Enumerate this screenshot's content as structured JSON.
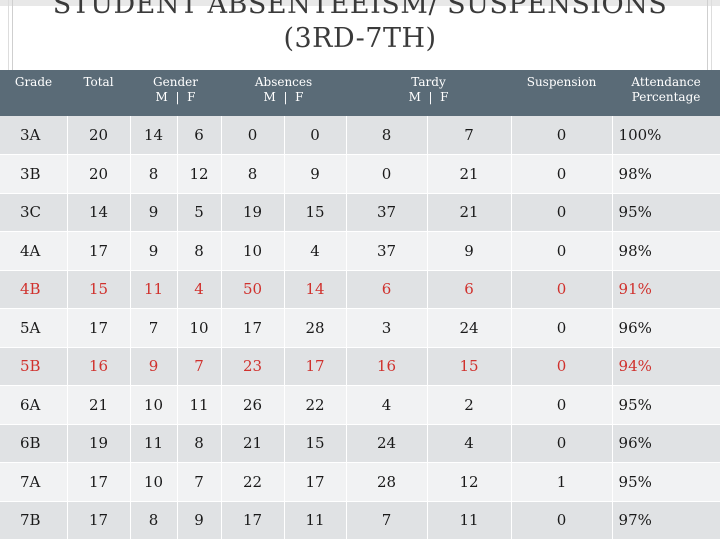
{
  "title": {
    "line1": "STUDENT ABSENTEEISM/ SUSPENSIONS",
    "line2": "(3RD-7TH)"
  },
  "headers": {
    "grade": "Grade",
    "total": "Total",
    "gender": "Gender",
    "gender_sub": "M  |  F",
    "absences": "Absences",
    "absences_sub": "M  |  F",
    "tardy": "Tardy",
    "tardy_sub": "M  |  F",
    "suspension": "Suspension",
    "attendance_l1": "Attendance",
    "attendance_l2": "Percentage"
  },
  "highlight_color": "#d0312d",
  "rows": [
    {
      "grade": "3A",
      "total": "20",
      "gm": "14",
      "gf": "6",
      "am": "0",
      "af": "0",
      "tm": "8",
      "tf": "7",
      "susp": "0",
      "att": "100%",
      "hl": false
    },
    {
      "grade": "3B",
      "total": "20",
      "gm": "8",
      "gf": "12",
      "am": "8",
      "af": "9",
      "tm": "0",
      "tf": "21",
      "susp": "0",
      "att": "98%",
      "hl": false
    },
    {
      "grade": "3C",
      "total": "14",
      "gm": "9",
      "gf": "5",
      "am": "19",
      "af": "15",
      "tm": "37",
      "tf": "21",
      "susp": "0",
      "att": "95%",
      "hl": false
    },
    {
      "grade": "4A",
      "total": "17",
      "gm": "9",
      "gf": "8",
      "am": "10",
      "af": "4",
      "tm": "37",
      "tf": "9",
      "susp": "0",
      "att": "98%",
      "hl": false
    },
    {
      "grade": "4B",
      "total": "15",
      "gm": "11",
      "gf": "4",
      "am": "50",
      "af": "14",
      "tm": "6",
      "tf": "6",
      "susp": "0",
      "att": "91%",
      "hl": true
    },
    {
      "grade": "5A",
      "total": "17",
      "gm": "7",
      "gf": "10",
      "am": "17",
      "af": "28",
      "tm": "3",
      "tf": "24",
      "susp": "0",
      "att": "96%",
      "hl": false
    },
    {
      "grade": "5B",
      "total": "16",
      "gm": "9",
      "gf": "7",
      "am": "23",
      "af": "17",
      "tm": "16",
      "tf": "15",
      "susp": "0",
      "att": "94%",
      "hl": true
    },
    {
      "grade": "6A",
      "total": "21",
      "gm": "10",
      "gf": "11",
      "am": "26",
      "af": "22",
      "tm": "4",
      "tf": "2",
      "susp": "0",
      "att": "95%",
      "hl": false
    },
    {
      "grade": "6B",
      "total": "19",
      "gm": "11",
      "gf": "8",
      "am": "21",
      "af": "15",
      "tm": "24",
      "tf": "4",
      "susp": "0",
      "att": "96%",
      "hl": false
    },
    {
      "grade": "7A",
      "total": "17",
      "gm": "10",
      "gf": "7",
      "am": "22",
      "af": "17",
      "tm": "28",
      "tf": "12",
      "susp": "1",
      "att": "95%",
      "hl": false
    },
    {
      "grade": "7B",
      "total": "17",
      "gm": "8",
      "gf": "9",
      "am": "17",
      "af": "11",
      "tm": "7",
      "tf": "11",
      "susp": "0",
      "att": "97%",
      "hl": false
    }
  ]
}
